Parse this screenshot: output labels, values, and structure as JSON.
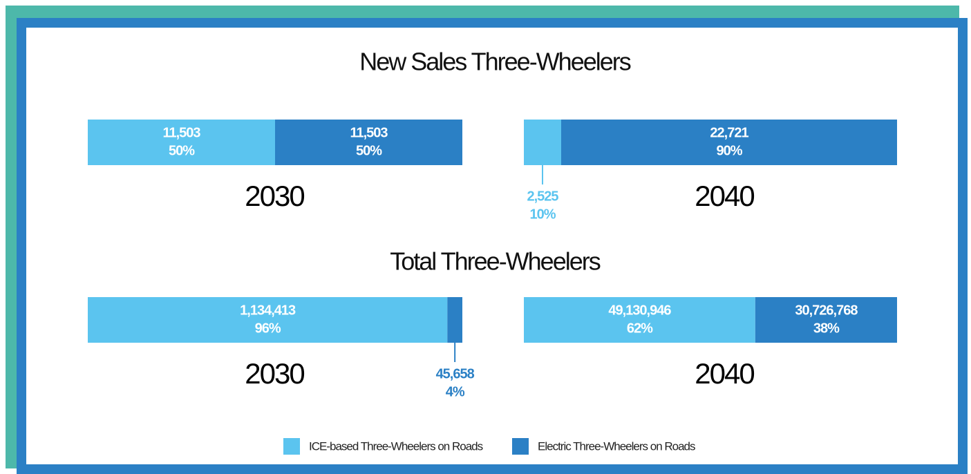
{
  "chart_data": [
    {
      "type": "bar",
      "stacked": true,
      "orientation": "horizontal",
      "title": "New Sales Three-Wheelers",
      "categories": [
        "2030",
        "2040"
      ],
      "series": [
        {
          "values": [
            11503,
            2525
          ],
          "value_labels": [
            "11,503",
            "2,525"
          ],
          "percents": [
            50,
            10
          ],
          "percent_labels": [
            "50%",
            "10%"
          ]
        },
        {
          "values": [
            11503,
            22721
          ],
          "value_labels": [
            "11,503",
            "22,721"
          ],
          "percents": [
            50,
            90
          ],
          "percent_labels": [
            "50%",
            "90%"
          ]
        }
      ]
    },
    {
      "type": "bar",
      "stacked": true,
      "orientation": "horizontal",
      "title": "Total Three-Wheelers",
      "categories": [
        "2030",
        "2040"
      ],
      "series": [
        {
          "values": [
            1134413,
            49130946
          ],
          "value_labels": [
            "1,134,413",
            "49,130,946"
          ],
          "percents": [
            96,
            62
          ],
          "percent_labels": [
            "96%",
            "62%"
          ]
        },
        {
          "values": [
            45658,
            30726768
          ],
          "value_labels": [
            "45,658",
            "30,726,768"
          ],
          "percents": [
            4,
            38
          ],
          "percent_labels": [
            "4%",
            "38%"
          ]
        }
      ]
    }
  ],
  "legend": {
    "entries": [
      {
        "name": "ICE-based Three-Wheelers on Roads",
        "color": "#5bc4ef"
      },
      {
        "name": "Electric Three-Wheelers on Roads",
        "color": "#2b80c5"
      }
    ]
  }
}
